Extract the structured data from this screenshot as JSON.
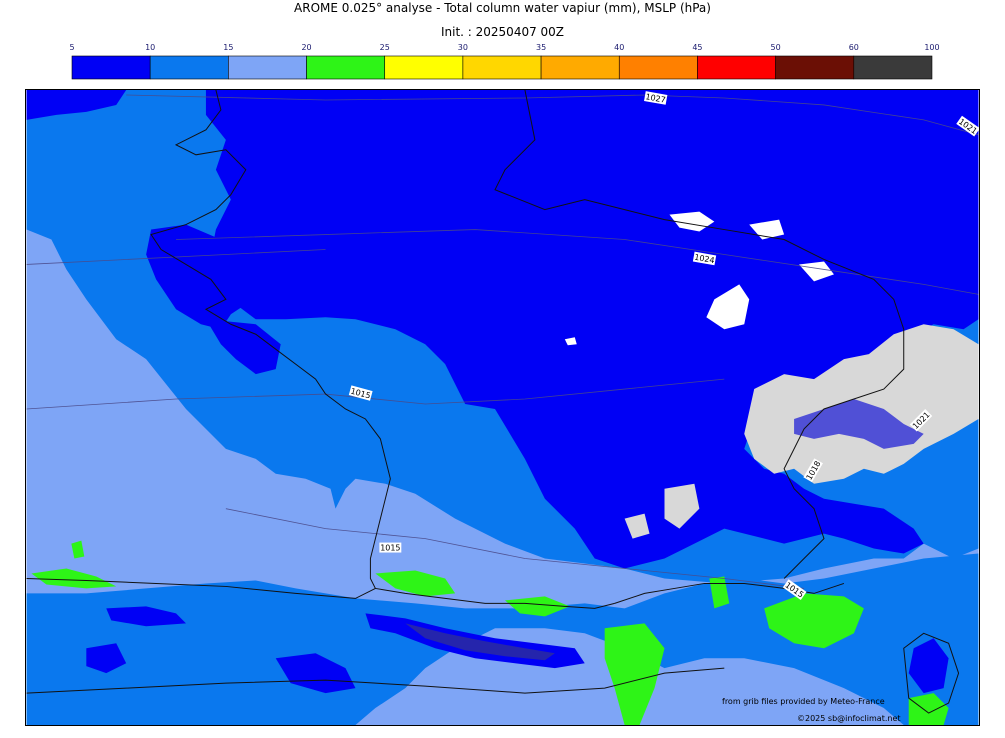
{
  "title": "AROME 0.025° analyse - Total column water vapiur (mm), MSLP (hPa)",
  "subtitle": "Init. : 20250407 00Z",
  "colorbar": {
    "ticks": [
      "5",
      "10",
      "15",
      "20",
      "25",
      "30",
      "35",
      "40",
      "45",
      "50",
      "60",
      "100"
    ],
    "colors": [
      "#0000f5",
      "#0a78ee",
      "#7ea5f6",
      "#2ef417",
      "#ffff00",
      "#ffd700",
      "#ffaa00",
      "#ff8000",
      "#ff0000",
      "#6b0f05",
      "#3a3a3a"
    ]
  },
  "isobars": [
    {
      "label": "1027"
    },
    {
      "label": "1021"
    },
    {
      "label": "1024"
    },
    {
      "label": "1015"
    },
    {
      "label": "1015"
    },
    {
      "label": "1021"
    },
    {
      "label": "1018"
    },
    {
      "label": "1015"
    }
  ],
  "credits": {
    "line1": "from grib files provided by Meteo-France",
    "line2": "©2025 sb@infoclimat.net"
  }
}
